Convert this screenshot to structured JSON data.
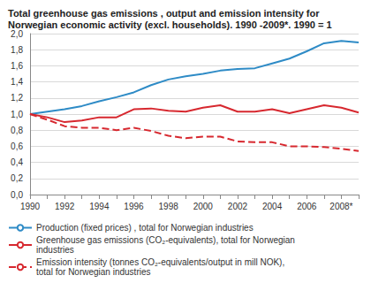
{
  "chart_data": {
    "type": "line",
    "title": "Total greenhouse gas emissions , output and emission intensity for Norwegian economic activity (excl. households). 1990 -2009*. 1990 = 1",
    "categories": [
      "1990",
      null,
      "1992",
      null,
      "1994",
      null,
      "1996",
      null,
      "1998",
      null,
      "2000",
      null,
      "2002",
      null,
      "2004",
      null,
      "2006",
      null,
      "2008*",
      null
    ],
    "series": [
      {
        "name": "Production (fixed prices) , total for Norwegian industries",
        "color": "#2e8bc6",
        "line_style": "solid",
        "values": [
          1.0,
          1.03,
          1.06,
          1.1,
          1.16,
          1.21,
          1.27,
          1.36,
          1.43,
          1.47,
          1.5,
          1.54,
          1.56,
          1.57,
          1.63,
          1.69,
          1.78,
          1.88,
          1.91,
          1.89
        ]
      },
      {
        "name": "Greenhouse gas emissions (CO₂-equivalents), total for Norwegian industries",
        "color": "#d7282f",
        "line_style": "solid",
        "values": [
          1.0,
          0.96,
          0.9,
          0.92,
          0.96,
          0.96,
          1.06,
          1.07,
          1.04,
          1.03,
          1.08,
          1.11,
          1.03,
          1.03,
          1.06,
          1.01,
          1.06,
          1.11,
          1.08,
          1.02
        ]
      },
      {
        "name": "Emission intensity (tonnes CO₂-equivalents/output in mill NOK), total for Norwegian industries",
        "color": "#d7282f",
        "line_style": "dashed",
        "values": [
          1.0,
          0.93,
          0.85,
          0.83,
          0.83,
          0.8,
          0.83,
          0.79,
          0.73,
          0.7,
          0.72,
          0.72,
          0.66,
          0.65,
          0.65,
          0.6,
          0.6,
          0.59,
          0.57,
          0.54
        ]
      }
    ],
    "ylim": [
      0,
      2
    ],
    "yticks": [
      {
        "value": 0,
        "label": "0,0"
      },
      {
        "value": 0.2,
        "label": "0,2"
      },
      {
        "value": 0.4,
        "label": "0,4"
      },
      {
        "value": 0.6,
        "label": "0,6"
      },
      {
        "value": 0.8,
        "label": "0,8"
      },
      {
        "value": 1,
        "label": "1,0"
      },
      {
        "value": 1.2,
        "label": "1,2"
      },
      {
        "value": 1.4,
        "label": "1,4"
      },
      {
        "value": 1.6,
        "label": "1,6"
      },
      {
        "value": 1.8,
        "label": "1,8"
      },
      {
        "value": 2,
        "label": "2,0"
      }
    ],
    "grid": true,
    "legend": "bottom"
  }
}
